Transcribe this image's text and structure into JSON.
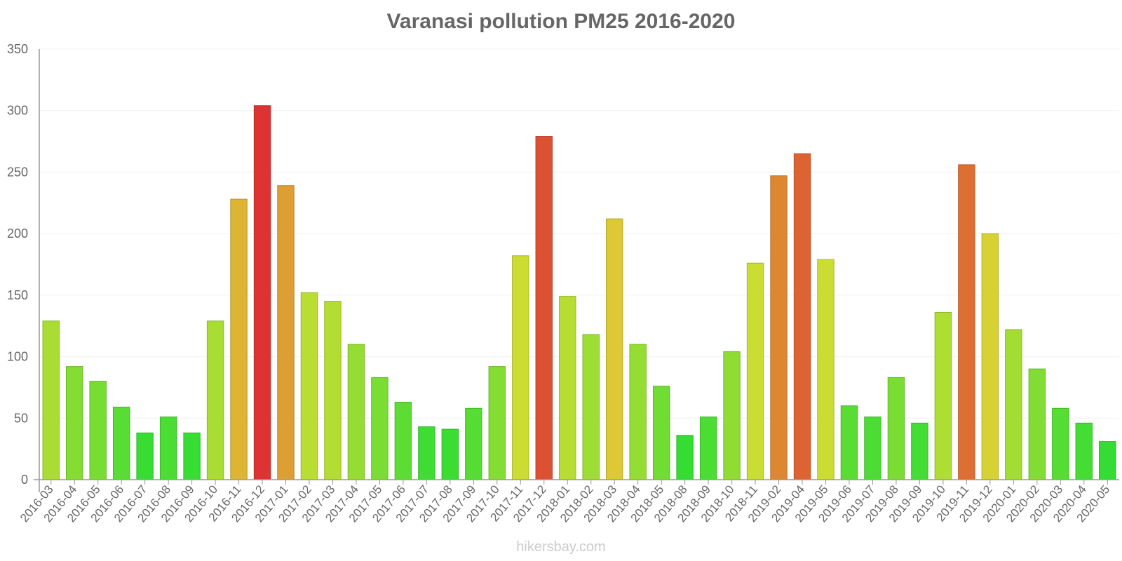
{
  "chart_data": {
    "type": "bar",
    "title": "Varanasi pollution PM25 2016-2020",
    "xlabel": "",
    "ylabel": "",
    "ylim": [
      0,
      350
    ],
    "yticks": [
      0,
      50,
      100,
      150,
      200,
      250,
      300,
      350
    ],
    "grid": true,
    "categories": [
      "2016-03",
      "2016-04",
      "2016-05",
      "2016-06",
      "2016-07",
      "2016-08",
      "2016-09",
      "2016-10",
      "2016-11",
      "2016-12",
      "2017-01",
      "2017-02",
      "2017-03",
      "2017-04",
      "2017-05",
      "2017-06",
      "2017-07",
      "2017-08",
      "2017-09",
      "2017-10",
      "2017-11",
      "2017-12",
      "2018-01",
      "2018-02",
      "2018-03",
      "2018-04",
      "2018-05",
      "2018-08",
      "2018-09",
      "2018-10",
      "2018-11",
      "2019-02",
      "2019-04",
      "2019-05",
      "2019-06",
      "2019-07",
      "2019-08",
      "2019-09",
      "2019-10",
      "2019-11",
      "2019-12",
      "2020-01",
      "2020-02",
      "2020-03",
      "2020-04",
      "2020-05"
    ],
    "values": [
      129,
      92,
      80,
      59,
      38,
      51,
      38,
      129,
      228,
      304,
      239,
      152,
      145,
      110,
      83,
      63,
      43,
      41,
      58,
      92,
      182,
      279,
      149,
      118,
      212,
      110,
      76,
      36,
      51,
      104,
      176,
      247,
      265,
      179,
      60,
      51,
      83,
      46,
      136,
      256,
      200,
      122,
      90,
      58,
      46,
      31
    ]
  },
  "watermark": "hikersbay.com"
}
